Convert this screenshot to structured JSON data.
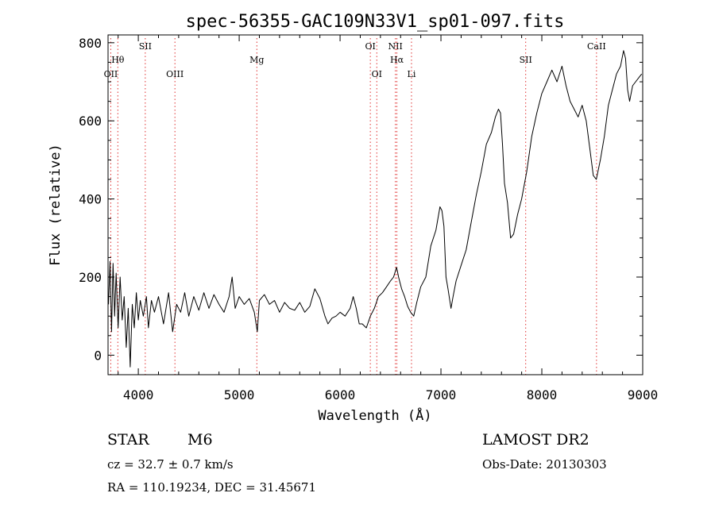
{
  "chart_data": {
    "type": "line",
    "title": "spec-56355-GAC109N33V1_sp01-097.fits",
    "xlabel": "Wavelength (Å)",
    "ylabel": "Flux (relative)",
    "xlim": [
      3700,
      9000
    ],
    "ylim": [
      -50,
      820
    ],
    "x_ticks": [
      4000,
      5000,
      6000,
      7000,
      8000,
      9000
    ],
    "y_ticks": [
      0,
      200,
      400,
      600,
      800
    ],
    "grid": false,
    "line_color": "#000000",
    "line_marker_color": "#e03030",
    "spectrum": [
      [
        3705,
        130
      ],
      [
        3720,
        240
      ],
      [
        3735,
        60
      ],
      [
        3750,
        235
      ],
      [
        3765,
        100
      ],
      [
        3780,
        210
      ],
      [
        3800,
        70
      ],
      [
        3820,
        200
      ],
      [
        3840,
        90
      ],
      [
        3860,
        150
      ],
      [
        3880,
        20
      ],
      [
        3900,
        120
      ],
      [
        3920,
        -30
      ],
      [
        3940,
        130
      ],
      [
        3960,
        70
      ],
      [
        3980,
        160
      ],
      [
        4000,
        90
      ],
      [
        4020,
        140
      ],
      [
        4050,
        100
      ],
      [
        4080,
        150
      ],
      [
        4100,
        70
      ],
      [
        4130,
        140
      ],
      [
        4160,
        110
      ],
      [
        4200,
        150
      ],
      [
        4250,
        80
      ],
      [
        4300,
        160
      ],
      [
        4340,
        60
      ],
      [
        4380,
        130
      ],
      [
        4420,
        110
      ],
      [
        4460,
        160
      ],
      [
        4500,
        100
      ],
      [
        4550,
        150
      ],
      [
        4600,
        115
      ],
      [
        4650,
        160
      ],
      [
        4700,
        120
      ],
      [
        4750,
        155
      ],
      [
        4800,
        130
      ],
      [
        4850,
        110
      ],
      [
        4900,
        150
      ],
      [
        4930,
        200
      ],
      [
        4960,
        120
      ],
      [
        5000,
        150
      ],
      [
        5050,
        130
      ],
      [
        5100,
        145
      ],
      [
        5150,
        110
      ],
      [
        5180,
        60
      ],
      [
        5200,
        140
      ],
      [
        5250,
        155
      ],
      [
        5300,
        130
      ],
      [
        5350,
        140
      ],
      [
        5400,
        110
      ],
      [
        5450,
        135
      ],
      [
        5500,
        120
      ],
      [
        5550,
        115
      ],
      [
        5600,
        135
      ],
      [
        5650,
        110
      ],
      [
        5700,
        125
      ],
      [
        5750,
        170
      ],
      [
        5800,
        145
      ],
      [
        5850,
        100
      ],
      [
        5880,
        80
      ],
      [
        5920,
        95
      ],
      [
        5960,
        100
      ],
      [
        6000,
        110
      ],
      [
        6050,
        100
      ],
      [
        6100,
        120
      ],
      [
        6130,
        150
      ],
      [
        6160,
        120
      ],
      [
        6190,
        80
      ],
      [
        6220,
        80
      ],
      [
        6260,
        70
      ],
      [
        6300,
        100
      ],
      [
        6340,
        120
      ],
      [
        6380,
        150
      ],
      [
        6420,
        160
      ],
      [
        6460,
        175
      ],
      [
        6500,
        190
      ],
      [
        6530,
        200
      ],
      [
        6560,
        225
      ],
      [
        6580,
        200
      ],
      [
        6610,
        170
      ],
      [
        6640,
        150
      ],
      [
        6670,
        125
      ],
      [
        6700,
        110
      ],
      [
        6730,
        100
      ],
      [
        6760,
        135
      ],
      [
        6800,
        175
      ],
      [
        6850,
        200
      ],
      [
        6900,
        280
      ],
      [
        6950,
        320
      ],
      [
        6990,
        380
      ],
      [
        7010,
        370
      ],
      [
        7030,
        330
      ],
      [
        7050,
        200
      ],
      [
        7070,
        170
      ],
      [
        7100,
        120
      ],
      [
        7120,
        150
      ],
      [
        7150,
        190
      ],
      [
        7200,
        230
      ],
      [
        7250,
        270
      ],
      [
        7300,
        340
      ],
      [
        7350,
        410
      ],
      [
        7400,
        470
      ],
      [
        7450,
        540
      ],
      [
        7500,
        570
      ],
      [
        7540,
        610
      ],
      [
        7570,
        630
      ],
      [
        7590,
        620
      ],
      [
        7610,
        540
      ],
      [
        7630,
        440
      ],
      [
        7660,
        390
      ],
      [
        7690,
        300
      ],
      [
        7720,
        310
      ],
      [
        7760,
        360
      ],
      [
        7800,
        400
      ],
      [
        7850,
        470
      ],
      [
        7900,
        560
      ],
      [
        7950,
        620
      ],
      [
        8000,
        670
      ],
      [
        8050,
        700
      ],
      [
        8100,
        730
      ],
      [
        8150,
        700
      ],
      [
        8200,
        740
      ],
      [
        8240,
        690
      ],
      [
        8280,
        650
      ],
      [
        8320,
        630
      ],
      [
        8360,
        610
      ],
      [
        8400,
        640
      ],
      [
        8440,
        600
      ],
      [
        8480,
        520
      ],
      [
        8510,
        460
      ],
      [
        8540,
        450
      ],
      [
        8580,
        500
      ],
      [
        8620,
        560
      ],
      [
        8660,
        640
      ],
      [
        8700,
        680
      ],
      [
        8740,
        720
      ],
      [
        8780,
        740
      ],
      [
        8810,
        780
      ],
      [
        8830,
        760
      ],
      [
        8850,
        680
      ],
      [
        8870,
        650
      ],
      [
        8900,
        690
      ],
      [
        8930,
        700
      ],
      [
        8960,
        710
      ],
      [
        8990,
        720
      ]
    ],
    "lines": [
      {
        "label": "Hθ",
        "wl": 3797,
        "row": 2
      },
      {
        "label": "OII",
        "wl": 3727,
        "row": 3
      },
      {
        "label": "SII",
        "wl": 4069,
        "row": 1
      },
      {
        "label": "OIII",
        "wl": 4363,
        "row": 3
      },
      {
        "label": "Mg",
        "wl": 5175,
        "row": 2
      },
      {
        "label": "OI",
        "wl": 6300,
        "row": 1
      },
      {
        "label": "OI",
        "wl": 6364,
        "row": 3
      },
      {
        "label": "NII",
        "wl": 6548,
        "row": 1
      },
      {
        "label": "Hα",
        "wl": 6563,
        "row": 2
      },
      {
        "label": "Li",
        "wl": 6708,
        "row": 3
      },
      {
        "label": "SII",
        "wl": 7840,
        "row": 2
      },
      {
        "label": "CaII",
        "wl": 8542,
        "row": 1
      }
    ]
  },
  "info": {
    "class_label": "STAR",
    "subclass": "M6",
    "survey": "LAMOST DR2",
    "cz": "cz = 32.7 ± 0.7 km/s",
    "obs_date": "Obs-Date: 20130303",
    "coords": "RA = 110.19234, DEC =  31.45671"
  }
}
